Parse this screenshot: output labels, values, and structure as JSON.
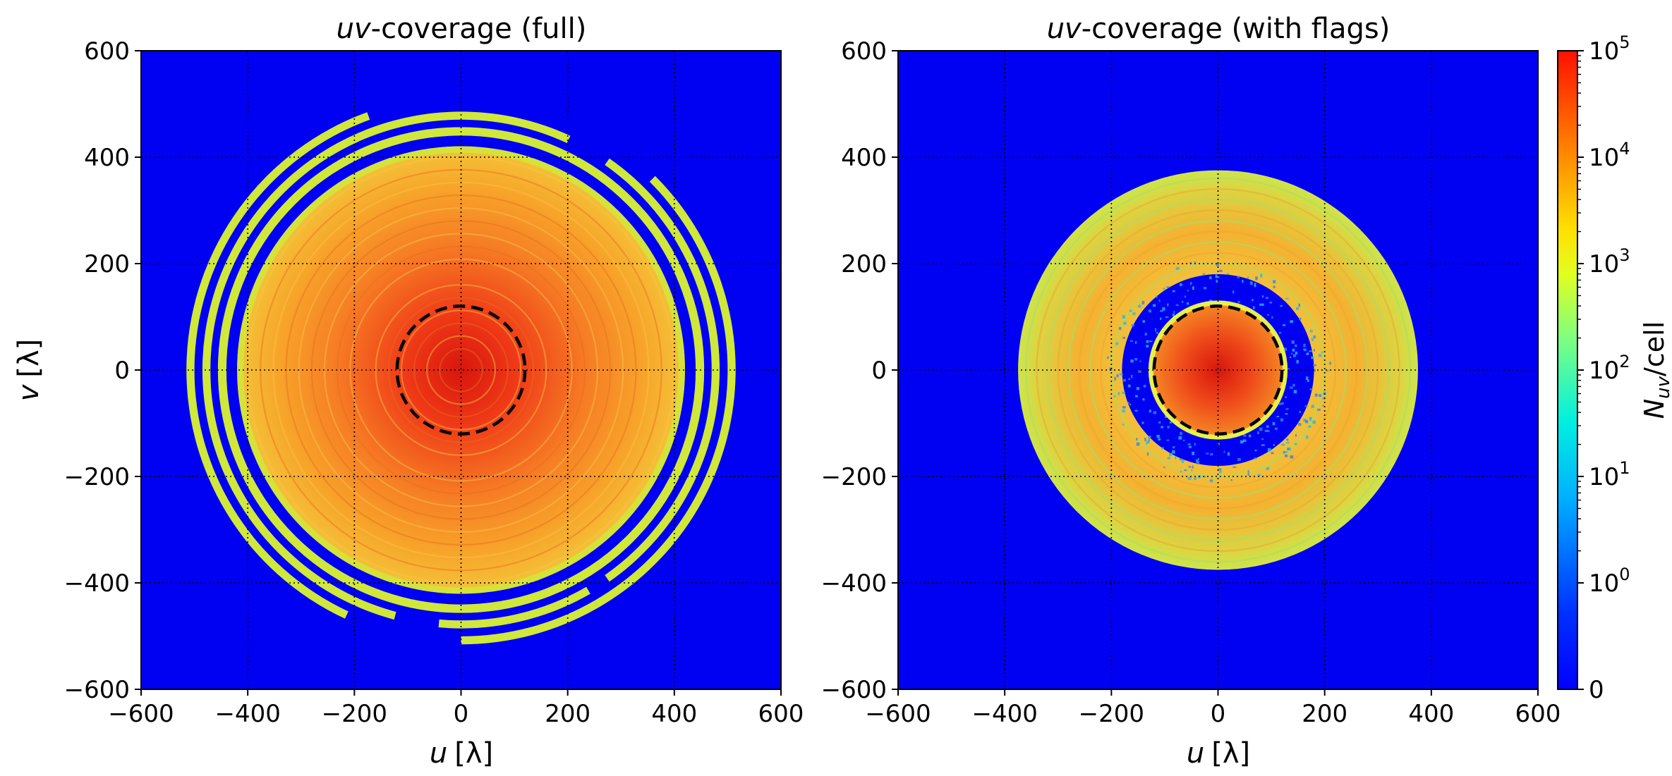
{
  "chart_data": [
    {
      "type": "heatmap",
      "title": "uv-coverage (full)",
      "title_italic": "uv",
      "title_rest": "-coverage (full)",
      "xlabel": "u [λ]",
      "xlabel_sym": "u",
      "xlabel_unit": "[λ]",
      "ylabel": "v [λ]",
      "ylabel_sym": "v",
      "ylabel_unit": "[λ]",
      "xlim": [
        -600,
        600
      ],
      "ylim": [
        -600,
        600
      ],
      "xticks": [
        -600,
        -400,
        -200,
        0,
        200,
        400,
        600
      ],
      "yticks": [
        -600,
        -400,
        -200,
        0,
        200,
        400,
        600
      ],
      "xtick_labels": [
        "−600",
        "−400",
        "−200",
        "0",
        "200",
        "400",
        "600"
      ],
      "ytick_labels": [
        "−600",
        "−400",
        "−200",
        "0",
        "200",
        "400",
        "600"
      ],
      "grid": true,
      "colormap": "jet",
      "background_color": "#0000f2",
      "dashed_circle_radius": 120,
      "disk_radius": 420,
      "rings": [
        {
          "inner": 440,
          "outer": 456,
          "arcs": [
            [
              0,
              360
            ]
          ]
        },
        {
          "inner": 470,
          "outer": 485,
          "arcs": [
            [
              -55,
              55
            ],
            [
              65,
              255
            ],
            [
              265,
              300
            ]
          ]
        },
        {
          "inner": 500,
          "outer": 515,
          "arcs": [
            [
              -60,
              45
            ],
            [
              110,
              245
            ],
            [
              270,
              300
            ]
          ]
        }
      ]
    },
    {
      "type": "heatmap",
      "title": "uv-coverage (with flags)",
      "title_italic": "uv",
      "title_rest": "-coverage (with flags)",
      "xlabel": "u [λ]",
      "xlabel_sym": "u",
      "xlabel_unit": "[λ]",
      "xlim": [
        -600,
        600
      ],
      "ylim": [
        -600,
        600
      ],
      "xticks": [
        -600,
        -400,
        -200,
        0,
        200,
        400,
        600
      ],
      "yticks": [
        -600,
        -400,
        -200,
        0,
        200,
        400,
        600
      ],
      "xtick_labels": [
        "−600",
        "−400",
        "−200",
        "0",
        "200",
        "400",
        "600"
      ],
      "ytick_labels": [
        "−600",
        "−400",
        "−200",
        "0",
        "200",
        "400",
        "600"
      ],
      "grid": true,
      "colormap": "jet",
      "background_color": "#0000f2",
      "dashed_circle_radius": 120,
      "core_radius": 130,
      "gap_inner": 130,
      "gap_outer": 180,
      "annulus_outer": 375
    }
  ],
  "colorbar": {
    "label": "N_uv/cell",
    "label_sym": "N",
    "label_sub": "uv",
    "label_rest": "/cell",
    "scale": "log",
    "ticks": [
      {
        "base": "0",
        "exp": ""
      },
      {
        "base": "10",
        "exp": "0"
      },
      {
        "base": "10",
        "exp": "1"
      },
      {
        "base": "10",
        "exp": "2"
      },
      {
        "base": "10",
        "exp": "3"
      },
      {
        "base": "10",
        "exp": "4"
      },
      {
        "base": "10",
        "exp": "5"
      }
    ],
    "colors": [
      "#00007f",
      "#0000ff",
      "#007fff",
      "#00ffff",
      "#7fff7f",
      "#ffff00",
      "#ff7f00",
      "#ff0000",
      "#7f0000"
    ]
  },
  "colors": {
    "background": "#0000f2",
    "core": "#ef3a17",
    "mid": "#f7a52a",
    "ring": "#cfe83a",
    "speckle": "#27b8ea",
    "dash": "#000000",
    "grid": "#000000"
  }
}
